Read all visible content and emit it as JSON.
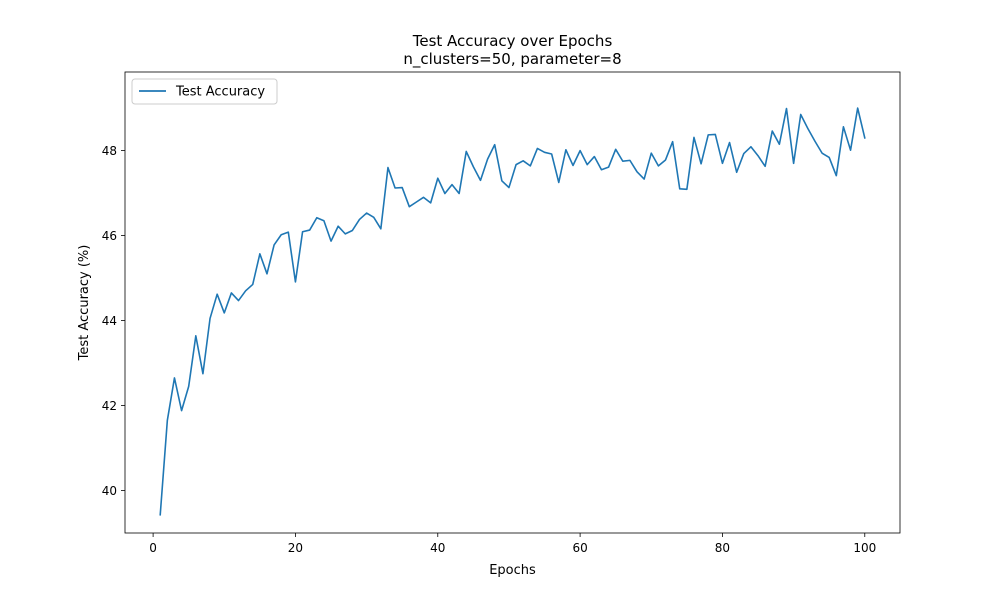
{
  "chart_data": {
    "type": "line",
    "title": "Test Accuracy over Epochs",
    "subtitle": "n_clusters=50, parameter=8",
    "xlabel": "Epochs",
    "ylabel": "Test Accuracy (%)",
    "xlim": [
      -3.95,
      104.95
    ],
    "ylim": [
      39.0,
      49.85
    ],
    "xticks": [
      0,
      20,
      40,
      60,
      80,
      100
    ],
    "yticks": [
      40,
      42,
      44,
      46,
      48
    ],
    "grid": false,
    "legend": {
      "position": "top-left",
      "entries": [
        "Test Accuracy"
      ]
    },
    "colors": {
      "series": "#1f77b4"
    },
    "series": [
      {
        "name": "Test Accuracy",
        "x": [
          1,
          2,
          3,
          4,
          5,
          6,
          7,
          8,
          9,
          10,
          11,
          12,
          13,
          14,
          15,
          16,
          17,
          18,
          19,
          20,
          21,
          22,
          23,
          24,
          25,
          26,
          27,
          28,
          29,
          30,
          31,
          32,
          33,
          34,
          35,
          36,
          37,
          38,
          39,
          40,
          41,
          42,
          43,
          44,
          45,
          46,
          47,
          48,
          49,
          50,
          51,
          52,
          53,
          54,
          55,
          56,
          57,
          58,
          59,
          60,
          61,
          62,
          63,
          64,
          65,
          66,
          67,
          68,
          69,
          70,
          71,
          72,
          73,
          74,
          75,
          76,
          77,
          78,
          79,
          80,
          81,
          82,
          83,
          84,
          85,
          86,
          87,
          88,
          89,
          90,
          91,
          92,
          93,
          94,
          95,
          96,
          97,
          98,
          99,
          100
        ],
        "values": [
          39.43,
          41.65,
          42.65,
          41.88,
          42.45,
          43.64,
          42.75,
          44.05,
          44.62,
          44.18,
          44.65,
          44.47,
          44.7,
          44.85,
          45.57,
          45.1,
          45.78,
          46.02,
          46.08,
          44.91,
          46.09,
          46.13,
          46.42,
          46.35,
          45.87,
          46.22,
          46.04,
          46.12,
          46.38,
          46.53,
          46.43,
          46.16,
          47.6,
          47.12,
          47.13,
          46.68,
          46.79,
          46.9,
          46.77,
          47.35,
          46.99,
          47.2,
          46.99,
          47.98,
          47.62,
          47.3,
          47.8,
          48.14,
          47.29,
          47.13,
          47.67,
          47.76,
          47.64,
          48.05,
          47.96,
          47.92,
          47.25,
          48.02,
          47.65,
          48.0,
          47.67,
          47.86,
          47.55,
          47.61,
          48.03,
          47.75,
          47.77,
          47.5,
          47.33,
          47.94,
          47.64,
          47.78,
          48.21,
          47.1,
          47.09,
          48.31,
          47.69,
          48.37,
          48.38,
          47.7,
          48.19,
          47.49,
          47.93,
          48.09,
          47.88,
          47.63,
          48.46,
          48.15,
          48.99,
          47.7,
          48.85,
          48.52,
          48.22,
          47.94,
          47.84,
          47.41,
          48.56,
          48.01,
          49.0,
          48.3
        ]
      }
    ]
  }
}
